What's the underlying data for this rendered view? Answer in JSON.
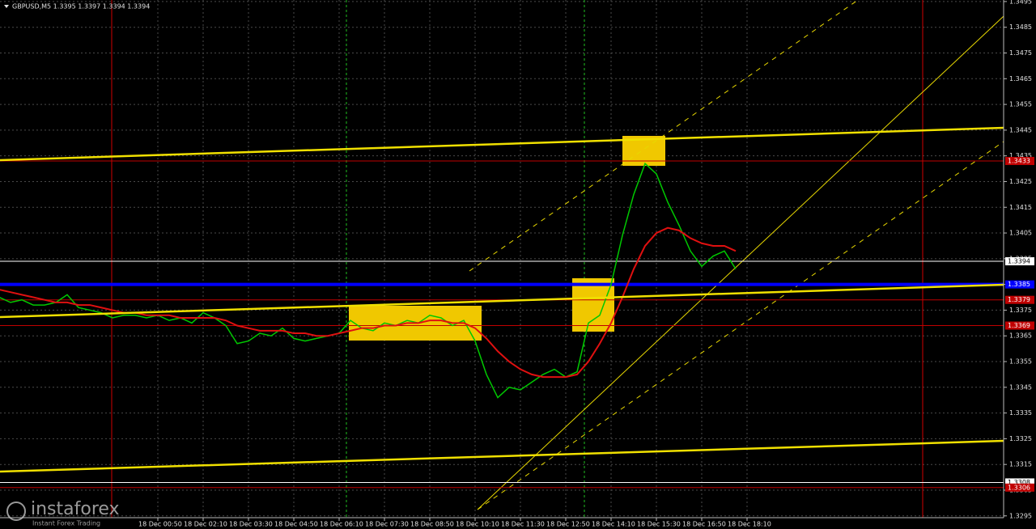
{
  "chart_data": {
    "type": "line",
    "title": "GBPUSD,M5  1.3395 1.3397 1.3394 1.3394",
    "categories": [
      null,
      null,
      null,
      null,
      null,
      null,
      null,
      null,
      null,
      null,
      null,
      null,
      null,
      null,
      "18 Dec 00:50",
      null,
      null,
      null,
      "18 Dec 02:10",
      null,
      null,
      null,
      "18 Dec 03:30",
      null,
      null,
      null,
      "18 Dec 04:50",
      null,
      null,
      null,
      "18 Dec 06:10",
      null,
      null,
      null,
      "18 Dec 07:30",
      null,
      null,
      null,
      "18 Dec 08:50",
      null,
      null,
      null,
      "18 Dec 10:10",
      null,
      null,
      null,
      "18 Dec 11:30",
      null,
      null,
      null,
      "18 Dec 12:50",
      null,
      null,
      null,
      "18 Dec 14:10",
      null,
      null,
      null,
      "18 Dec 15:30",
      null,
      null,
      null,
      "18 Dec 16:50",
      null,
      null,
      null,
      "18 Dec 18:10"
    ],
    "series": [
      {
        "color": "#00c800",
        "values": [
          1.338,
          1.3378,
          1.3379,
          1.3377,
          1.3377,
          1.3378,
          1.3381,
          1.3376,
          1.3375,
          1.3374,
          1.3372,
          1.3373,
          1.3373,
          1.3372,
          1.3373,
          1.3371,
          1.3372,
          1.337,
          1.3374,
          1.3372,
          1.3369,
          1.3362,
          1.3363,
          1.3366,
          1.3365,
          1.3368,
          1.3364,
          1.3363,
          1.3364,
          1.3365,
          1.3366,
          1.3371,
          1.3368,
          1.3367,
          1.337,
          1.3369,
          1.3371,
          1.337,
          1.3373,
          1.3372,
          1.3369,
          1.3371,
          1.3363,
          1.335,
          1.3341,
          1.3345,
          1.3344,
          1.3347,
          1.335,
          1.3352,
          1.3349,
          1.3351,
          1.337,
          1.3373,
          1.3385,
          1.3404,
          1.342,
          1.3432,
          1.3428,
          1.3417,
          1.3408,
          1.3398,
          1.3392,
          1.3396,
          1.3398,
          1.3391,
          null
        ]
      },
      {
        "color": "#e01010",
        "values": [
          1.3383,
          1.3382,
          1.3381,
          1.338,
          1.3379,
          1.3378,
          1.3378,
          1.3377,
          1.3377,
          1.3376,
          1.3375,
          1.3374,
          1.3374,
          1.3373,
          1.3373,
          1.3373,
          1.3372,
          1.3372,
          1.3372,
          1.3372,
          1.3371,
          1.3369,
          1.3368,
          1.3367,
          1.3367,
          1.3367,
          1.3366,
          1.3366,
          1.3365,
          1.3365,
          1.3366,
          1.3367,
          1.3368,
          1.3368,
          1.3369,
          1.3369,
          1.337,
          1.337,
          1.3371,
          1.3371,
          1.337,
          1.337,
          1.3368,
          1.3364,
          1.3359,
          1.3355,
          1.3352,
          1.335,
          1.3349,
          1.3349,
          1.3349,
          1.335,
          1.3355,
          1.3362,
          1.337,
          1.338,
          1.3391,
          1.34,
          1.3405,
          1.3407,
          1.3406,
          1.3403,
          1.3401,
          1.34,
          1.34,
          1.3398,
          null
        ]
      }
    ],
    "ylim": [
      1.32943,
      1.34956
    ],
    "yticks": [
      1.3295,
      1.3305,
      1.3315,
      1.3325,
      1.3335,
      1.3345,
      1.3355,
      1.3365,
      1.3375,
      1.3385,
      1.3395,
      1.3405,
      1.3415,
      1.3425,
      1.3435,
      1.3445,
      1.3455,
      1.3465,
      1.3475,
      1.3485,
      1.3495
    ],
    "grid": true,
    "levels": [
      {
        "value": 1.3433,
        "color": "#c00000"
      },
      {
        "value": 1.3394,
        "color": "#ffffff"
      },
      {
        "value": 1.3385,
        "color": "#0000ff"
      },
      {
        "value": 1.3379,
        "color": "#c00000"
      },
      {
        "value": 1.3369,
        "color": "#c00000"
      },
      {
        "value": 1.3308,
        "color": "#ffffff"
      },
      {
        "value": 1.3306,
        "color": "#c00000"
      }
    ],
    "watermark": {
      "brand": "instaforex",
      "tagline": "Instant Forex Trading"
    }
  }
}
